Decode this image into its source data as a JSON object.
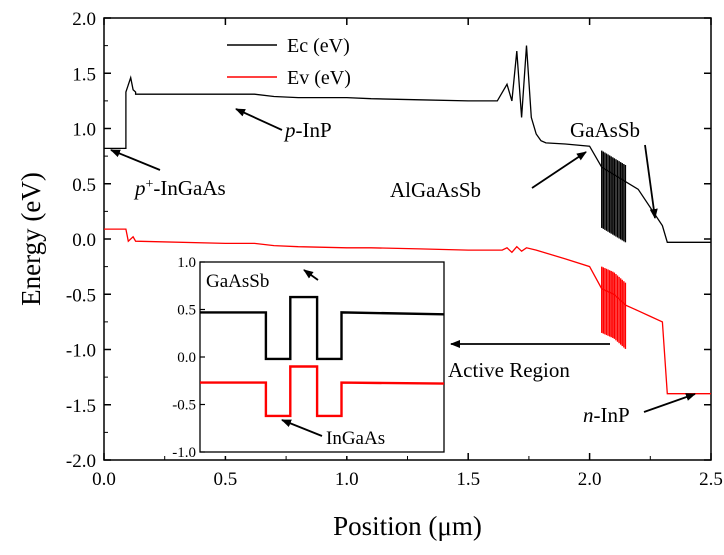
{
  "chart_data": {
    "type": "line",
    "xlabel": "Position (μm)",
    "ylabel": "Energy (eV)",
    "xlim": [
      0,
      2.5
    ],
    "ylim": [
      -2.0,
      2.0
    ],
    "x_ticks": [
      "0.0",
      "0.5",
      "1.0",
      "1.5",
      "2.0",
      "2.5"
    ],
    "y_ticks": [
      "2.0",
      "1.5",
      "1.0",
      "0.5",
      "0.0",
      "-0.5",
      "-1.0",
      "-1.5",
      "-2.0"
    ],
    "legend_placement": "top-center",
    "series": [
      {
        "name": "Ec (eV)",
        "color": "#000000",
        "x": [
          0.0,
          0.09,
          0.09,
          0.11,
          0.12,
          0.13,
          0.13,
          0.5,
          0.62,
          0.7,
          0.8,
          1.0,
          1.1,
          1.3,
          1.5,
          1.62,
          1.66,
          1.68,
          1.7,
          1.72,
          1.74,
          1.76,
          1.78,
          1.8,
          1.82,
          1.9,
          2.0,
          2.05,
          2.2,
          2.3,
          2.32,
          2.5
        ],
        "values": [
          0.82,
          0.82,
          1.33,
          1.46,
          1.35,
          1.33,
          1.31,
          1.31,
          1.31,
          1.29,
          1.28,
          1.28,
          1.27,
          1.26,
          1.25,
          1.25,
          1.4,
          1.25,
          1.7,
          1.1,
          1.75,
          1.1,
          0.95,
          0.89,
          0.87,
          0.86,
          0.84,
          0.65,
          0.45,
          0.12,
          -0.03,
          -0.03
        ]
      },
      {
        "name": "Ev (eV)",
        "color": "#ff0000",
        "x": [
          0.0,
          0.09,
          0.1,
          0.12,
          0.13,
          0.5,
          0.62,
          0.7,
          0.8,
          1.0,
          1.1,
          1.3,
          1.5,
          1.64,
          1.66,
          1.68,
          1.7,
          1.72,
          1.74,
          1.78,
          1.9,
          2.0,
          2.05,
          2.1,
          2.15,
          2.2,
          2.25,
          2.3,
          2.32,
          2.5
        ],
        "values": [
          0.09,
          0.09,
          -0.02,
          0.02,
          -0.02,
          -0.04,
          -0.04,
          -0.06,
          -0.07,
          -0.08,
          -0.08,
          -0.09,
          -0.1,
          -0.1,
          -0.08,
          -0.12,
          -0.07,
          -0.11,
          -0.08,
          -0.1,
          -0.18,
          -0.25,
          -0.45,
          -0.5,
          -0.6,
          -0.65,
          -0.7,
          -0.75,
          -1.4,
          -1.4
        ]
      }
    ],
    "annotations": [
      {
        "text_pre": "p",
        "text_sup": "+",
        "text_post": "-InGaAs",
        "x": 0.01,
        "y": 0.8
      },
      {
        "text_pre": "p",
        "text_sup": "",
        "text_post": "-InP",
        "x": 0.55,
        "y": 1.2
      },
      {
        "text_pre": "",
        "text_sup": "",
        "text_post": "AlGaAsSb",
        "x": 1.97,
        "y": 0.74
      },
      {
        "text_pre": "",
        "text_sup": "",
        "text_post": "GaAsSb",
        "x": 2.27,
        "y": 0.18
      },
      {
        "text_pre": "",
        "text_sup": "",
        "text_post": "Active Region",
        "x": 2.1,
        "y": -1.05
      },
      {
        "text_pre": "n",
        "text_sup": "",
        "text_post": "-InP",
        "x": 2.47,
        "y": -1.4
      }
    ],
    "inset": {
      "ylim": [
        -1.0,
        1.0
      ],
      "y_ticks": [
        "1.0",
        "0.5",
        "0.0",
        "-0.5",
        "-1.0"
      ],
      "series": [
        {
          "name": "Ec",
          "color": "#000000",
          "x": [
            0.0,
            0.27,
            0.27,
            0.37,
            0.37,
            0.48,
            0.48,
            0.58,
            0.58,
            1.0
          ],
          "values": [
            0.47,
            0.47,
            -0.02,
            -0.02,
            0.63,
            0.63,
            -0.02,
            -0.02,
            0.47,
            0.45
          ]
        },
        {
          "name": "Ev",
          "color": "#ff0000",
          "x": [
            0.0,
            0.27,
            0.27,
            0.37,
            0.37,
            0.48,
            0.48,
            0.58,
            0.58,
            1.0
          ],
          "values": [
            -0.27,
            -0.27,
            -0.62,
            -0.62,
            -0.1,
            -0.1,
            -0.62,
            -0.62,
            -0.27,
            -0.28
          ]
        }
      ],
      "labels": [
        {
          "text": "GaAsSb",
          "x": 0.39,
          "y": 0.68
        },
        {
          "text": "InGaAs",
          "x": 0.4,
          "y": -0.82
        }
      ]
    }
  }
}
